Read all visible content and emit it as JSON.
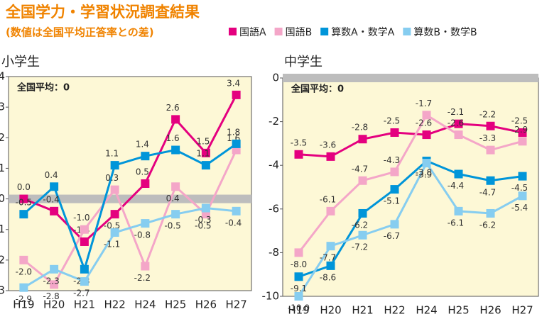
{
  "header": {
    "title": "全国学力・学習状況調査結果",
    "subtitle": "(数値は全国平均正答率との差)"
  },
  "chart_data": [
    {
      "type": "line",
      "title": "小学生",
      "annotation": "全国平均：0",
      "categories": [
        "H19",
        "H20",
        "H21",
        "H22",
        "H24",
        "H25",
        "H26",
        "H27"
      ],
      "ylim": [
        -3,
        4
      ],
      "yticks": [
        -3,
        -2,
        -1,
        0,
        1,
        2,
        3,
        4
      ],
      "series": [
        {
          "name": "国語A",
          "color": "#e4007f",
          "values": [
            0,
            -0.4,
            -1.4,
            -0.5,
            0.5,
            2.6,
            1.5,
            3.4
          ],
          "value_labels": [
            "0.0",
            "-0.4",
            "-1.4",
            "-0.5",
            "0.5",
            "2.6",
            "1.5",
            "3.4"
          ]
        },
        {
          "name": "国語B",
          "color": "#f4a6c8",
          "values": [
            -2,
            -2.8,
            -1,
            0.3,
            -2.2,
            0.4,
            -0.5,
            1.6
          ],
          "value_labels": [
            "-2.0",
            "-2.8",
            "-1.0",
            "0.3",
            "-2.2",
            "0.4",
            "-0.5",
            "1.6"
          ]
        },
        {
          "name": "算数A・数学A",
          "color": "#0095d9",
          "values": [
            -0.5,
            0.4,
            -2.3,
            1.1,
            1.4,
            1.6,
            1.1,
            1.8
          ],
          "value_labels": [
            "-0.5",
            "0.4",
            "-2.3",
            "1.1",
            "1.4",
            "1.6",
            "1.1",
            "1.8"
          ]
        },
        {
          "name": "算数B・数学B",
          "color": "#86cdf0",
          "values": [
            -2.9,
            -2.3,
            -2.7,
            -1.1,
            -0.8,
            -0.5,
            -0.3,
            -0.4
          ],
          "value_labels": [
            "-2.9",
            "-2.3",
            "-2.7",
            "-1.1",
            "-0.8",
            "-0.5",
            "-0.3",
            "-0.4"
          ]
        }
      ]
    },
    {
      "type": "line",
      "title": "中学生",
      "annotation": "全国平均：0",
      "categories": [
        "H19",
        "H20",
        "H21",
        "H22",
        "H24",
        "H25",
        "H26",
        "H27"
      ],
      "ylim": [
        -10,
        0
      ],
      "yticks": [
        -10,
        -8,
        -6,
        -4,
        -2,
        0
      ],
      "series": [
        {
          "name": "国語A",
          "color": "#e4007f",
          "values": [
            -3.5,
            -3.6,
            -2.8,
            -2.5,
            -2.6,
            -2.1,
            -2.2,
            -2.5
          ]
        },
        {
          "name": "国語B",
          "color": "#f4a6c8",
          "values": [
            -8,
            -6.1,
            -4.7,
            -4.3,
            -1.7,
            -2.6,
            -3.3,
            -2.9
          ],
          "value_labels": [
            "-8.0",
            "-6.1",
            "-4.7",
            "-4.3",
            "-1.7",
            "-2.6",
            "-3.3",
            "-2.9"
          ]
        },
        {
          "name": "算数A・数学A",
          "color": "#0095d9",
          "values": [
            -9.1,
            -8.6,
            -6.2,
            -5.1,
            -3.8,
            -4.4,
            -4.7,
            -4.5
          ]
        },
        {
          "name": "算数B・数学B",
          "color": "#86cdf0",
          "values": [
            -10,
            -7.7,
            -7.2,
            -6.7,
            -3.9,
            -6.1,
            -6.2,
            -5.4
          ],
          "value_labels": [
            "-10.0",
            "-7.7",
            "-7.2",
            "-6.7",
            "-3.9",
            "-6.1",
            "-6.2",
            "-5.4"
          ]
        }
      ]
    }
  ]
}
